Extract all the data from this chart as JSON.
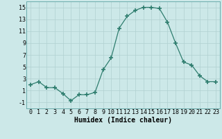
{
  "x": [
    0,
    1,
    2,
    3,
    4,
    5,
    6,
    7,
    8,
    9,
    10,
    11,
    12,
    13,
    14,
    15,
    16,
    17,
    18,
    19,
    20,
    21,
    22,
    23
  ],
  "y": [
    2,
    2.5,
    1.5,
    1.5,
    0.5,
    -0.7,
    0.3,
    0.3,
    0.7,
    4.5,
    6.5,
    11.5,
    13.5,
    14.5,
    15.0,
    15.0,
    14.8,
    12.5,
    9.0,
    5.8,
    5.3,
    3.5,
    2.5,
    2.5
  ],
  "line_color": "#2e7d6e",
  "marker": "+",
  "marker_size": 4,
  "bg_color": "#cce8e8",
  "grid_color": "#b0d0d0",
  "grid_color_minor": "#e8d8d8",
  "xlabel": "Humidex (Indice chaleur)",
  "xlim": [
    -0.5,
    23.5
  ],
  "ylim": [
    -2,
    16
  ],
  "yticks": [
    -1,
    1,
    3,
    5,
    7,
    9,
    11,
    13,
    15
  ],
  "xtick_labels": [
    "0",
    "1",
    "2",
    "3",
    "4",
    "5",
    "6",
    "7",
    "8",
    "9",
    "10",
    "11",
    "12",
    "13",
    "14",
    "15",
    "16",
    "17",
    "18",
    "19",
    "20",
    "21",
    "22",
    "23"
  ],
  "xlabel_fontsize": 7,
  "tick_fontsize": 6
}
